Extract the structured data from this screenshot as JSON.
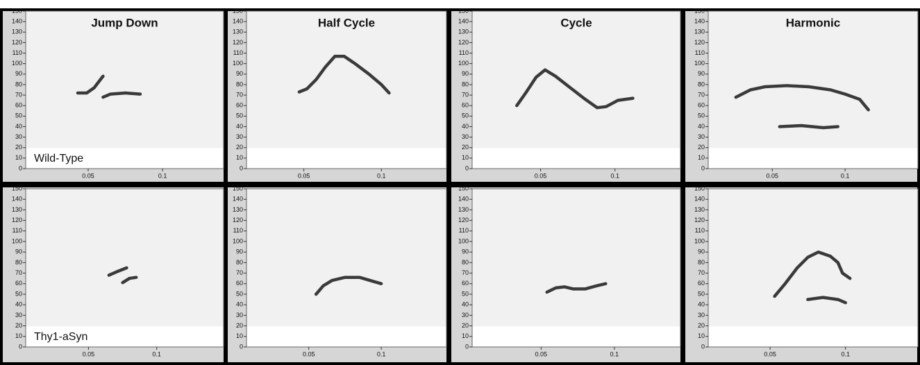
{
  "chart_data": [
    {
      "type": "line",
      "title": "Jump Down",
      "annotation": "Wild-Type",
      "color": "#1a1a1a",
      "x": [
        0.043,
        0.049,
        0.054,
        0.06,
        null,
        0.06,
        0.065,
        0.075,
        0.085
      ],
      "values": [
        72,
        72,
        77,
        88,
        null,
        68,
        71,
        72,
        71
      ],
      "xlim": [
        0.008,
        0.141
      ],
      "ylim": [
        0,
        150
      ],
      "xticks": [
        0.05,
        0.1
      ],
      "yticks": [
        0,
        10,
        20,
        30,
        40,
        50,
        60,
        70,
        80,
        90,
        100,
        110,
        120,
        130,
        140,
        150
      ]
    },
    {
      "type": "line",
      "title": "Half Cycle",
      "color": "#1a1a1a",
      "x": [
        0.047,
        0.052,
        0.058,
        0.064,
        0.07,
        0.076,
        0.083,
        0.092,
        0.1,
        0.105
      ],
      "values": [
        73,
        76,
        85,
        97,
        107,
        107,
        100,
        90,
        80,
        72
      ],
      "xlim": [
        0.013,
        0.142
      ],
      "ylim": [
        0,
        150
      ],
      "xticks": [
        0.05,
        0.1
      ],
      "yticks": [
        0,
        10,
        20,
        30,
        40,
        50,
        60,
        70,
        80,
        90,
        100,
        110,
        120,
        130,
        140,
        150
      ]
    },
    {
      "type": "line",
      "title": "Cycle",
      "color": "#1a1a1a",
      "x": [
        0.034,
        0.04,
        0.047,
        0.053,
        0.06,
        0.07,
        0.08,
        0.088,
        0.094,
        0.102,
        0.112
      ],
      "values": [
        60,
        72,
        87,
        94,
        88,
        77,
        66,
        58,
        59,
        65,
        67
      ],
      "xlim": [
        0.004,
        0.144
      ],
      "ylim": [
        0,
        150
      ],
      "xticks": [
        0.05,
        0.1
      ],
      "yticks": [
        0,
        10,
        20,
        30,
        40,
        50,
        60,
        70,
        80,
        90,
        100,
        110,
        120,
        130,
        140,
        150
      ]
    },
    {
      "type": "line",
      "title": "Harmonic",
      "color": "#1a1a1a",
      "x": [
        0.025,
        0.035,
        0.045,
        0.06,
        0.075,
        0.09,
        0.1,
        0.11,
        0.116,
        null,
        0.055,
        0.07,
        0.085,
        0.095
      ],
      "values": [
        68,
        75,
        78,
        79,
        78,
        75,
        71,
        66,
        56,
        null,
        40,
        41,
        39,
        40
      ],
      "xlim": [
        0.006,
        0.15
      ],
      "ylim": [
        0,
        150
      ],
      "xticks": [
        0.05,
        0.1
      ],
      "yticks": [
        0,
        10,
        20,
        30,
        40,
        50,
        60,
        70,
        80,
        90,
        100,
        110,
        120,
        130,
        140,
        150
      ]
    },
    {
      "type": "line",
      "annotation": "Thy1-aSyn",
      "color": "#1a1a1a",
      "x": [
        0.065,
        0.072,
        0.078,
        null,
        0.075,
        0.08,
        0.085
      ],
      "values": [
        68,
        72,
        75,
        null,
        61,
        65,
        66
      ],
      "xlim": [
        0.004,
        0.149
      ],
      "ylim": [
        0,
        150
      ],
      "xticks": [
        0.05,
        0.1
      ],
      "yticks": [
        0,
        10,
        20,
        30,
        40,
        50,
        60,
        70,
        80,
        90,
        100,
        110,
        120,
        130,
        140,
        150
      ]
    },
    {
      "type": "line",
      "color": "#1a1a1a",
      "x": [
        0.055,
        0.06,
        0.066,
        0.075,
        0.085,
        0.095,
        0.1
      ],
      "values": [
        50,
        58,
        63,
        66,
        66,
        62,
        60
      ],
      "xlim": [
        0.007,
        0.145
      ],
      "ylim": [
        0,
        150
      ],
      "xticks": [
        0.05,
        0.1
      ],
      "yticks": [
        0,
        10,
        20,
        30,
        40,
        50,
        60,
        70,
        80,
        90,
        100,
        110,
        120,
        130,
        140,
        150
      ]
    },
    {
      "type": "line",
      "color": "#1a1a1a",
      "x": [
        0.054,
        0.06,
        0.066,
        0.072,
        0.08,
        0.088,
        0.094
      ],
      "values": [
        52,
        56,
        57,
        55,
        55,
        58,
        60
      ],
      "xlim": [
        0.003,
        0.145
      ],
      "ylim": [
        0,
        150
      ],
      "xticks": [
        0.05,
        0.1
      ],
      "yticks": [
        0,
        10,
        20,
        30,
        40,
        50,
        60,
        70,
        80,
        90,
        100,
        110,
        120,
        130,
        140,
        150
      ]
    },
    {
      "type": "line",
      "color": "#1a1a1a",
      "x": [
        0.053,
        0.06,
        0.068,
        0.075,
        0.082,
        0.09,
        0.095,
        0.098,
        0.103,
        null,
        0.075,
        0.085,
        0.095,
        0.1
      ],
      "values": [
        48,
        60,
        75,
        85,
        90,
        86,
        80,
        70,
        65,
        null,
        45,
        47,
        45,
        42
      ],
      "xlim": [
        0.009,
        0.148
      ],
      "ylim": [
        0,
        150
      ],
      "xticks": [
        0.05,
        0.1
      ],
      "yticks": [
        0,
        10,
        20,
        30,
        40,
        50,
        60,
        70,
        80,
        90,
        100,
        110,
        120,
        130,
        140,
        150
      ]
    }
  ]
}
